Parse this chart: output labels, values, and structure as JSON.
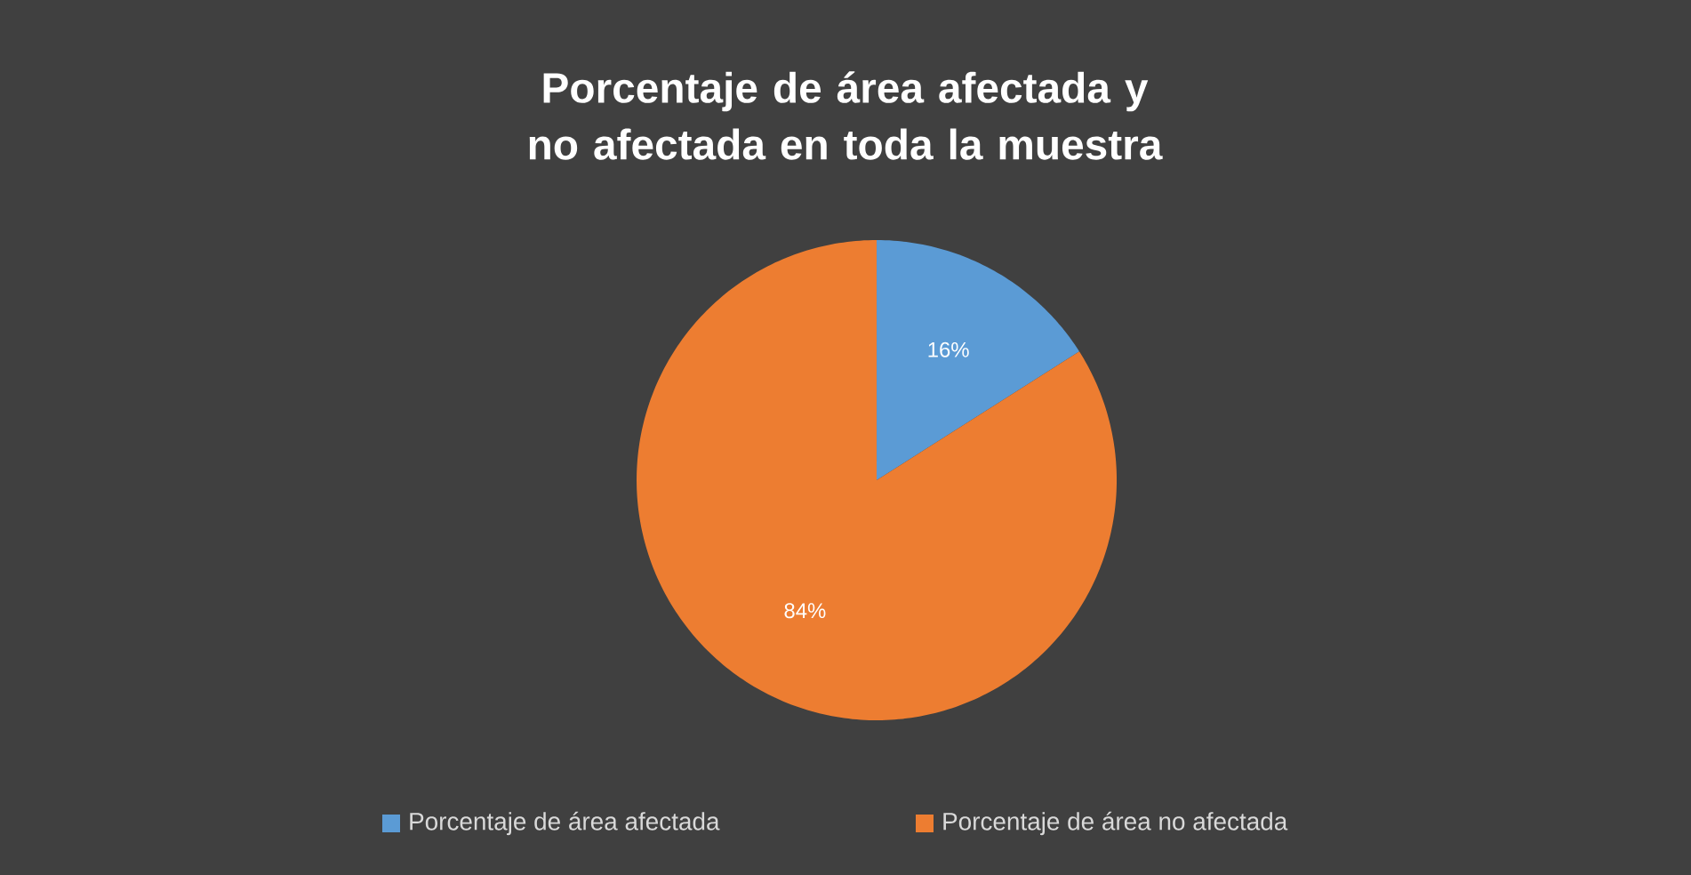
{
  "chart_data": {
    "type": "pie",
    "title": "Porcentaje de área afectada y no afectada en toda la muestra",
    "categories": [
      "Porcentaje de área afectada",
      "Porcentaje de área no afectada"
    ],
    "values": [
      16,
      84
    ],
    "value_labels": [
      "16%",
      "84%"
    ],
    "colors": [
      "#5b9bd5",
      "#ed7d31"
    ],
    "legend": "bottom"
  }
}
